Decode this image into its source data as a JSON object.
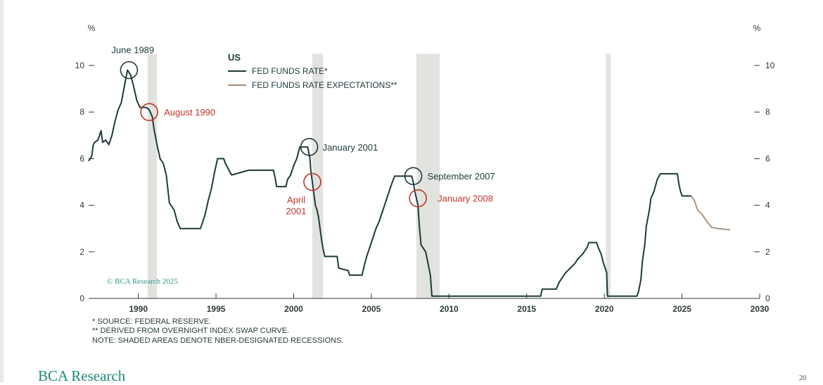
{
  "chart_data": {
    "type": "line",
    "title": "US",
    "ylabel_left": "%",
    "ylabel_right": "%",
    "xlim": [
      1986.8,
      2030
    ],
    "ylim": [
      0,
      10.5
    ],
    "x_ticks": [
      1990,
      1995,
      2000,
      2005,
      2010,
      2015,
      2020,
      2025,
      2030
    ],
    "x_tick_labels": [
      "1990",
      "1995",
      "2000",
      "2005",
      "2010",
      "2015",
      "2020",
      "2025",
      "2030"
    ],
    "y_ticks": [
      0,
      2,
      4,
      6,
      8,
      10
    ],
    "y_tick_labels": [
      "0",
      "2",
      "4",
      "6",
      "8",
      "10"
    ],
    "legend_position": "top-left",
    "recessions": [
      [
        1990.6,
        1991.2
      ],
      [
        2001.2,
        2001.9
      ],
      [
        2007.9,
        2009.4
      ],
      [
        2020.1,
        2020.4
      ]
    ],
    "series": [
      {
        "name": "FED FUNDS RATE*",
        "color": "#1d3a3a",
        "points": [
          [
            1986.8,
            5.9
          ],
          [
            1987.0,
            6.1
          ],
          [
            1987.1,
            6.6
          ],
          [
            1987.2,
            6.7
          ],
          [
            1987.4,
            6.8
          ],
          [
            1987.6,
            7.2
          ],
          [
            1987.7,
            6.7
          ],
          [
            1987.9,
            6.8
          ],
          [
            1988.1,
            6.6
          ],
          [
            1988.3,
            7.0
          ],
          [
            1988.5,
            7.6
          ],
          [
            1988.7,
            8.1
          ],
          [
            1988.9,
            8.4
          ],
          [
            1989.1,
            9.1
          ],
          [
            1989.3,
            9.8
          ],
          [
            1989.5,
            9.6
          ],
          [
            1989.7,
            9.1
          ],
          [
            1989.9,
            8.5
          ],
          [
            1990.1,
            8.2
          ],
          [
            1990.5,
            8.2
          ],
          [
            1990.7,
            8.1
          ],
          [
            1990.9,
            7.8
          ],
          [
            1991.0,
            7.3
          ],
          [
            1991.2,
            6.6
          ],
          [
            1991.4,
            6.0
          ],
          [
            1991.6,
            5.8
          ],
          [
            1991.8,
            5.3
          ],
          [
            1992.0,
            4.1
          ],
          [
            1992.3,
            3.8
          ],
          [
            1992.5,
            3.3
          ],
          [
            1992.7,
            3.0
          ],
          [
            1993.0,
            3.0
          ],
          [
            1994.0,
            3.0
          ],
          [
            1994.1,
            3.2
          ],
          [
            1994.3,
            3.6
          ],
          [
            1994.5,
            4.2
          ],
          [
            1994.7,
            4.7
          ],
          [
            1994.9,
            5.4
          ],
          [
            1995.1,
            6.0
          ],
          [
            1995.5,
            6.0
          ],
          [
            1995.6,
            5.8
          ],
          [
            1996.0,
            5.3
          ],
          [
            1997.1,
            5.5
          ],
          [
            1998.7,
            5.5
          ],
          [
            1998.8,
            5.2
          ],
          [
            1998.9,
            4.8
          ],
          [
            1999.5,
            4.8
          ],
          [
            1999.6,
            5.1
          ],
          [
            1999.8,
            5.3
          ],
          [
            2000.0,
            5.7
          ],
          [
            2000.2,
            6.0
          ],
          [
            2000.4,
            6.5
          ],
          [
            2000.9,
            6.5
          ],
          [
            2001.05,
            6.0
          ],
          [
            2001.1,
            5.5
          ],
          [
            2001.2,
            5.0
          ],
          [
            2001.3,
            4.5
          ],
          [
            2001.4,
            4.0
          ],
          [
            2001.5,
            3.8
          ],
          [
            2001.6,
            3.5
          ],
          [
            2001.7,
            3.0
          ],
          [
            2001.8,
            2.5
          ],
          [
            2001.9,
            2.1
          ],
          [
            2002.0,
            1.8
          ],
          [
            2002.8,
            1.8
          ],
          [
            2002.9,
            1.3
          ],
          [
            2003.5,
            1.2
          ],
          [
            2003.6,
            1.0
          ],
          [
            2004.4,
            1.0
          ],
          [
            2004.5,
            1.3
          ],
          [
            2004.7,
            1.8
          ],
          [
            2004.9,
            2.2
          ],
          [
            2005.1,
            2.6
          ],
          [
            2005.3,
            3.0
          ],
          [
            2005.5,
            3.3
          ],
          [
            2005.7,
            3.7
          ],
          [
            2005.9,
            4.1
          ],
          [
            2006.1,
            4.5
          ],
          [
            2006.3,
            4.9
          ],
          [
            2006.5,
            5.25
          ],
          [
            2007.6,
            5.25
          ],
          [
            2007.7,
            5.0
          ],
          [
            2007.8,
            4.6
          ],
          [
            2008.0,
            4.0
          ],
          [
            2008.1,
            3.0
          ],
          [
            2008.2,
            2.3
          ],
          [
            2008.5,
            2.0
          ],
          [
            2008.8,
            1.0
          ],
          [
            2008.9,
            0.1
          ],
          [
            2015.9,
            0.1
          ],
          [
            2016.0,
            0.4
          ],
          [
            2016.9,
            0.4
          ],
          [
            2017.1,
            0.7
          ],
          [
            2017.3,
            0.9
          ],
          [
            2017.5,
            1.1
          ],
          [
            2017.8,
            1.3
          ],
          [
            2018.1,
            1.5
          ],
          [
            2018.3,
            1.7
          ],
          [
            2018.6,
            1.9
          ],
          [
            2018.9,
            2.2
          ],
          [
            2019.0,
            2.4
          ],
          [
            2019.5,
            2.4
          ],
          [
            2019.6,
            2.2
          ],
          [
            2019.8,
            1.9
          ],
          [
            2019.9,
            1.6
          ],
          [
            2020.15,
            1.1
          ],
          [
            2020.2,
            0.1
          ],
          [
            2022.1,
            0.1
          ],
          [
            2022.2,
            0.3
          ],
          [
            2022.35,
            0.8
          ],
          [
            2022.45,
            1.6
          ],
          [
            2022.6,
            2.3
          ],
          [
            2022.7,
            3.1
          ],
          [
            2022.9,
            3.8
          ],
          [
            2023.0,
            4.3
          ],
          [
            2023.2,
            4.6
          ],
          [
            2023.4,
            5.1
          ],
          [
            2023.6,
            5.35
          ],
          [
            2024.7,
            5.35
          ],
          [
            2024.8,
            4.9
          ],
          [
            2024.9,
            4.6
          ],
          [
            2025.0,
            4.4
          ],
          [
            2025.6,
            4.4
          ]
        ]
      },
      {
        "name": "FED FUNDS RATE EXPECTATIONS**",
        "color": "#a58b76",
        "points": [
          [
            2025.6,
            4.4
          ],
          [
            2025.8,
            4.2
          ],
          [
            2026.0,
            3.8
          ],
          [
            2026.3,
            3.6
          ],
          [
            2026.6,
            3.3
          ],
          [
            2026.9,
            3.05
          ],
          [
            2027.3,
            3.0
          ],
          [
            2027.7,
            2.97
          ],
          [
            2028.1,
            2.95
          ]
        ]
      }
    ],
    "annotations": [
      {
        "label": "June 1989",
        "x": 1989.4,
        "y": 9.8,
        "color": "#1d3a3a"
      },
      {
        "label": "August 1990",
        "x": 1990.7,
        "y": 8.0,
        "color": "#c0352b"
      },
      {
        "label": "January 2001",
        "x": 2001.0,
        "y": 6.5,
        "color": "#1d3a3a"
      },
      {
        "label": "April 2001",
        "x": 2001.2,
        "y": 5.0,
        "color": "#c0352b"
      },
      {
        "label": "September 2007",
        "x": 2007.7,
        "y": 5.25,
        "color": "#1d3a3a"
      },
      {
        "label": "January 2008",
        "x": 2008.0,
        "y": 4.3,
        "color": "#c0352b"
      }
    ],
    "watermark": "© BCA Research 2025"
  },
  "notes": [
    "*  SOURCE: FEDERAL RESERVE.",
    "** DERIVED FROM OVERNIGHT INDEX SWAP CURVE.",
    "NOTE: SHADED AREAS DENOTE NBER-DESIGNATED RECESSIONS."
  ],
  "footer": {
    "brand": "BCA Research",
    "page": "20"
  }
}
